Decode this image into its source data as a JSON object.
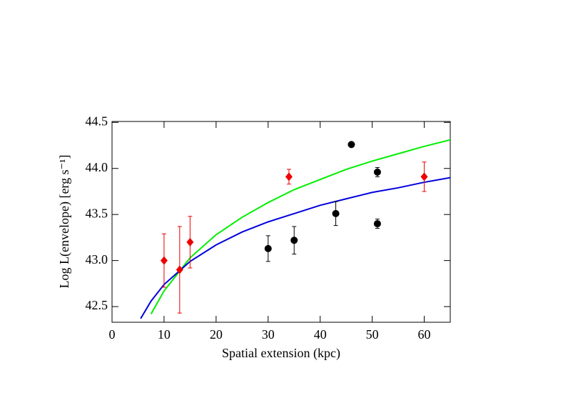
{
  "chart_data": {
    "type": "scatter",
    "xlabel": "Spatial extension (kpc)",
    "ylabel": "Log L(envelope) [erg s⁻¹]",
    "xlim": [
      0,
      65
    ],
    "ylim": [
      42.33,
      44.51
    ],
    "xticks": [
      0,
      10,
      20,
      30,
      40,
      50,
      60
    ],
    "yticks": [
      42.5,
      {
        "value": 43,
        "label": "43.0"
      },
      43.5,
      {
        "value": 44,
        "label": "44.0"
      },
      44.5
    ],
    "series": [
      {
        "style": "line",
        "color": "#00ee00",
        "x": [
          7.5,
          10,
          15,
          20,
          25,
          30,
          35,
          40,
          45,
          50,
          55,
          60,
          65
        ],
        "values": [
          42.42,
          42.67,
          43.03,
          43.28,
          43.47,
          43.63,
          43.77,
          43.88,
          43.99,
          44.08,
          44.16,
          44.24,
          44.31
        ]
      },
      {
        "style": "line",
        "color": "#0000dd",
        "x": [
          5.5,
          7.5,
          10,
          15,
          20,
          25,
          30,
          35,
          40,
          45,
          50,
          55,
          60,
          65
        ],
        "values": [
          42.37,
          42.56,
          42.74,
          42.99,
          43.17,
          43.31,
          43.42,
          43.51,
          43.6,
          43.67,
          43.74,
          43.79,
          43.85,
          43.9
        ]
      },
      {
        "style": "circle",
        "color": "#000000",
        "x": [
          30,
          35,
          43,
          46,
          51,
          51
        ],
        "values": [
          43.13,
          43.22,
          43.51,
          44.26,
          43.96,
          43.4
        ],
        "errors": [
          0.14,
          0.15,
          0.13,
          0,
          0.05,
          0.05
        ]
      },
      {
        "style": "diamond",
        "color": "#ee0000",
        "x": [
          10,
          13,
          15,
          34,
          60
        ],
        "values": [
          43.0,
          42.9,
          43.2,
          43.91,
          43.91
        ],
        "errors": [
          0.29,
          0.47,
          0.28,
          0.08,
          0.16
        ]
      }
    ]
  }
}
